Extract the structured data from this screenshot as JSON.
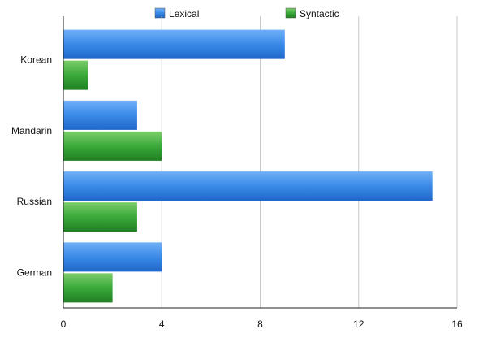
{
  "chart_data": {
    "type": "bar",
    "orientation": "horizontal",
    "title": "",
    "xlabel": "",
    "ylabel": "",
    "xlim": [
      0,
      16
    ],
    "x_ticks": [
      "0",
      "4",
      "8",
      "12",
      "16"
    ],
    "grid": "vertical",
    "legend_position": "top",
    "categories": [
      "Korean",
      "Mandarin",
      "Russian",
      "German"
    ],
    "series": [
      {
        "name": "Lexical",
        "values": [
          9,
          3,
          15,
          4
        ],
        "color": "#2f7ee0"
      },
      {
        "name": "Syntactic",
        "values": [
          1,
          4,
          3,
          2
        ],
        "color": "#2f9a2f"
      }
    ]
  }
}
